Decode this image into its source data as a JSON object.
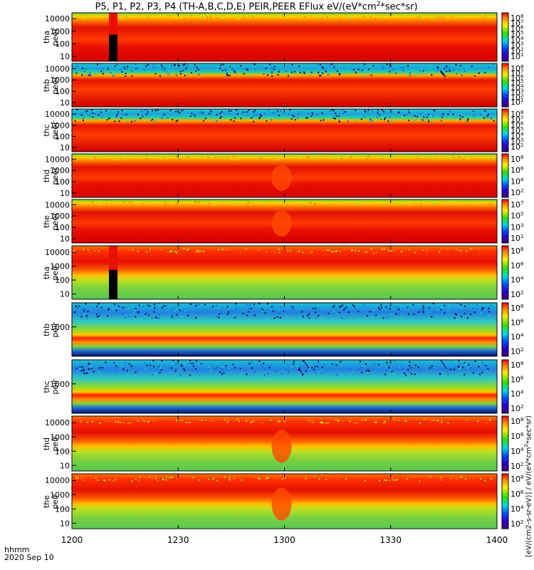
{
  "title": {
    "pre": "P5, P1, P2, P3, P4 (TH-A,B,C,D,E) PEIR,PEER EFlux eV/(eV*cm",
    "sup": "2",
    "post": "*sec*sr)"
  },
  "xaxis": {
    "row1": "hhmm",
    "row2": "2020 Sep 10",
    "ticks": [
      "1200",
      "1230",
      "1300",
      "1330",
      "1400"
    ]
  },
  "colorbar_unit": {
    "pre": "[eV/(cm2-s-sr-eV)] / eV/(eV*cm",
    "sup": "2",
    "post": "*sec*sr)"
  },
  "panels": [
    {
      "line1": "tha",
      "line2": "peer",
      "yticks": [
        "10000",
        "1000",
        "100",
        "10"
      ],
      "cbar": [
        "10",
        "10",
        "10",
        "10",
        "10",
        "10",
        "10",
        "10"
      ],
      "cbar_exp": [
        "8",
        "7",
        "6",
        "5",
        "4",
        "3",
        "2",
        "1"
      ]
    },
    {
      "line1": "thb",
      "line2": "peer",
      "yticks": [
        "10000",
        "1000",
        "100",
        "10"
      ],
      "cbar": [
        "10",
        "10",
        "10",
        "10",
        "10",
        "10",
        "10",
        "10"
      ],
      "cbar_exp": [
        "8",
        "7",
        "6",
        "5",
        "4",
        "3",
        "2",
        "1"
      ]
    },
    {
      "line1": "thc",
      "line2": "peer",
      "yticks": [
        "10000",
        "1000",
        "100",
        "10"
      ],
      "cbar": [
        "10",
        "10",
        "10",
        "10",
        "10",
        "10",
        "10"
      ],
      "cbar_exp": [
        "8",
        "7",
        "6",
        "5",
        "4",
        "3",
        "2"
      ]
    },
    {
      "line1": "thd",
      "line2": "peer",
      "yticks": [
        "10000",
        "1000",
        "100",
        "10"
      ],
      "cbar": [
        "10",
        "10",
        "10",
        "10"
      ],
      "cbar_exp": [
        "8",
        "6",
        "4",
        "2"
      ]
    },
    {
      "line1": "the",
      "line2": "peer",
      "yticks": [
        "10000",
        "1000",
        "100",
        "10"
      ],
      "cbar": [
        "10",
        "10",
        "10",
        "10"
      ],
      "cbar_exp": [
        "7",
        "5",
        "3",
        "1"
      ]
    },
    {
      "line1": "tha",
      "line2": "peir",
      "yticks": [
        "10000",
        "1000",
        "100",
        "10"
      ],
      "cbar": [
        "10",
        "10",
        "10",
        "10"
      ],
      "cbar_exp": [
        "8",
        "6",
        "4",
        "2"
      ]
    },
    {
      "line1": "thb",
      "line2": "peir",
      "yticks": [
        "1000"
      ],
      "cbar": [
        "10",
        "10",
        "10",
        "10"
      ],
      "cbar_exp": [
        "8",
        "6",
        "4",
        "2"
      ]
    },
    {
      "line1": "thc",
      "line2": "peir",
      "yticks": [
        "1000"
      ],
      "cbar": [
        "10",
        "10",
        "10",
        "10"
      ],
      "cbar_exp": [
        "8",
        "6",
        "4",
        "2"
      ]
    },
    {
      "line1": "thd",
      "line2": "peir",
      "yticks": [
        "10000",
        "1000",
        "100",
        "10"
      ],
      "cbar": [
        "10",
        "10",
        "10",
        "10"
      ],
      "cbar_exp": [
        "8",
        "6",
        "4",
        "2"
      ]
    },
    {
      "line1": "the",
      "line2": "peir",
      "yticks": [
        "10000",
        "1000",
        "100",
        "10"
      ],
      "cbar": [
        "10",
        "10",
        "10",
        "10"
      ],
      "cbar_exp": [
        "8",
        "6",
        "4",
        "2"
      ]
    }
  ],
  "chart_data": {
    "type": "heatmap",
    "x_range_hhmm": [
      "1200",
      "1400"
    ],
    "y_scale": "log",
    "colormap": "rainbow (purple-blue-cyan-green-yellow-red)",
    "colors": {
      "low": "#3b009e",
      "mid": "#22d05a",
      "high": "#e81000",
      "gap": "#000000"
    },
    "features": [
      {
        "panel": "tha peer",
        "note": "data gap near 1210"
      },
      {
        "panel": "tha peir",
        "note": "data gap near 1210"
      },
      {
        "panel": "thd peer",
        "note": "flux dip near 1300"
      },
      {
        "panel": "the peer",
        "note": "flux dip near 1300"
      },
      {
        "panel": "thd peir",
        "note": "flux dip near 1300"
      },
      {
        "panel": "the peir",
        "note": "flux dip near 1300"
      }
    ]
  }
}
